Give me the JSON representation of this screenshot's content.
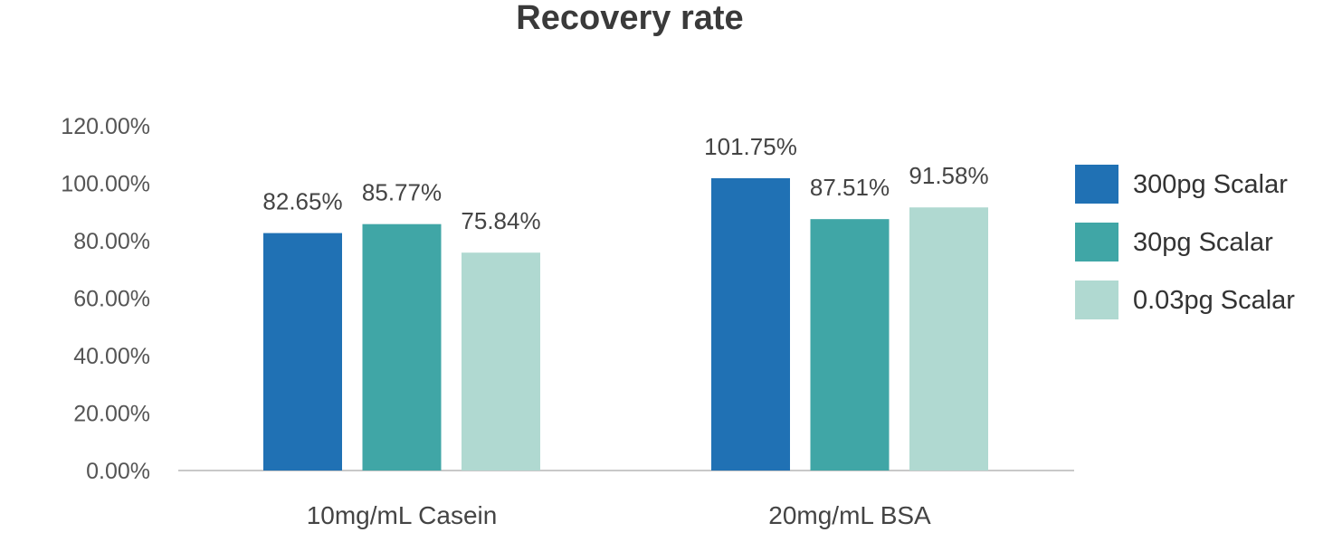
{
  "chart_data": {
    "type": "bar",
    "title": "Recovery rate",
    "categories": [
      "10mg/mL Casein",
      "20mg/mL BSA"
    ],
    "series": [
      {
        "name": "300pg Scalar",
        "color": "#2071b4",
        "values": [
          82.65,
          101.75
        ],
        "labels": [
          "82.65%",
          "101.75%"
        ]
      },
      {
        "name": "30pg Scalar",
        "color": "#40a6a6",
        "values": [
          85.77,
          87.51
        ],
        "labels": [
          "85.77%",
          "87.51%"
        ]
      },
      {
        "name": "0.03pg Scalar",
        "color": "#b0d9d1",
        "values": [
          75.84,
          91.58
        ],
        "labels": [
          "75.84%",
          "91.58%"
        ]
      }
    ],
    "ylim": [
      0,
      120
    ],
    "yticks": [
      "0.00%",
      "20.00%",
      "40.00%",
      "60.00%",
      "80.00%",
      "100.00%",
      "120.00%"
    ],
    "grid": false,
    "legend_position": "right"
  }
}
